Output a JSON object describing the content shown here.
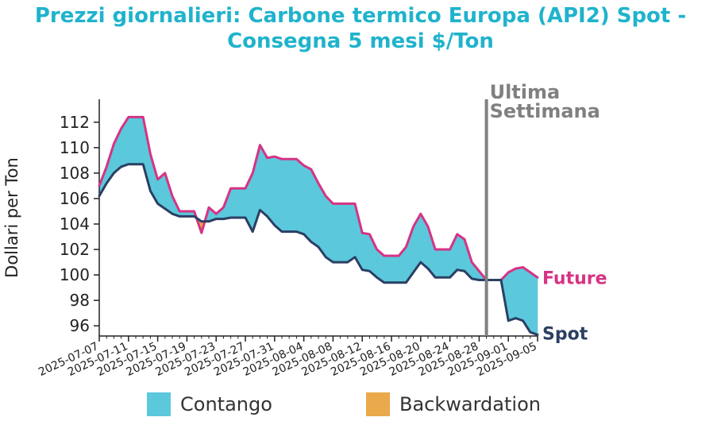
{
  "title_line1": "Prezzi giornalieri: Carbone termico Europa (API2) Spot -",
  "title_line2": "Consegna 5 mesi $/Ton",
  "chart_data": {
    "type": "area",
    "ylabel": "Dollari per Ton",
    "ylim": [
      95.2,
      113.8
    ],
    "yticks": [
      96,
      98,
      100,
      102,
      104,
      106,
      108,
      110,
      112
    ],
    "xlim": [
      "2025-07-07",
      "2025-09-05"
    ],
    "xticks": [
      "2025-07-07",
      "2025-07-11",
      "2025-07-15",
      "2025-07-19",
      "2025-07-23",
      "2025-07-27",
      "2025-07-31",
      "2025-08-04",
      "2025-08-08",
      "2025-08-12",
      "2025-08-16",
      "2025-08-20",
      "2025-08-24",
      "2025-08-28",
      "2025-09-01",
      "2025-09-05"
    ],
    "annotation": {
      "text_line1": "Ultima",
      "text_line2": "Settimana",
      "x": "2025-08-29"
    },
    "series": [
      {
        "name": "Future",
        "color": "#d63384",
        "points": [
          [
            "2025-07-07",
            107.0
          ],
          [
            "2025-07-08",
            108.5
          ],
          [
            "2025-07-09",
            110.3
          ],
          [
            "2025-07-10",
            111.5
          ],
          [
            "2025-07-11",
            112.4
          ],
          [
            "2025-07-12",
            112.4
          ],
          [
            "2025-07-13",
            112.4
          ],
          [
            "2025-07-14",
            109.5
          ],
          [
            "2025-07-15",
            107.5
          ],
          [
            "2025-07-16",
            108.0
          ],
          [
            "2025-07-17",
            106.2
          ],
          [
            "2025-07-18",
            105.0
          ],
          [
            "2025-07-19",
            105.0
          ],
          [
            "2025-07-20",
            105.0
          ],
          [
            "2025-07-21",
            103.3
          ],
          [
            "2025-07-22",
            105.3
          ],
          [
            "2025-07-23",
            104.8
          ],
          [
            "2025-07-24",
            105.3
          ],
          [
            "2025-07-25",
            106.8
          ],
          [
            "2025-07-26",
            106.8
          ],
          [
            "2025-07-27",
            106.8
          ],
          [
            "2025-07-28",
            108.0
          ],
          [
            "2025-07-29",
            110.2
          ],
          [
            "2025-07-30",
            109.2
          ],
          [
            "2025-07-31",
            109.3
          ],
          [
            "2025-08-01",
            109.1
          ],
          [
            "2025-08-02",
            109.1
          ],
          [
            "2025-08-03",
            109.1
          ],
          [
            "2025-08-04",
            108.6
          ],
          [
            "2025-08-05",
            108.3
          ],
          [
            "2025-08-06",
            107.2
          ],
          [
            "2025-08-07",
            106.2
          ],
          [
            "2025-08-08",
            105.6
          ],
          [
            "2025-08-09",
            105.6
          ],
          [
            "2025-08-10",
            105.6
          ],
          [
            "2025-08-11",
            105.6
          ],
          [
            "2025-08-12",
            103.3
          ],
          [
            "2025-08-13",
            103.2
          ],
          [
            "2025-08-14",
            102.0
          ],
          [
            "2025-08-15",
            101.5
          ],
          [
            "2025-08-16",
            101.5
          ],
          [
            "2025-08-17",
            101.5
          ],
          [
            "2025-08-18",
            102.2
          ],
          [
            "2025-08-19",
            103.8
          ],
          [
            "2025-08-20",
            104.8
          ],
          [
            "2025-08-21",
            103.8
          ],
          [
            "2025-08-22",
            102.0
          ],
          [
            "2025-08-23",
            102.0
          ],
          [
            "2025-08-24",
            102.0
          ],
          [
            "2025-08-25",
            103.2
          ],
          [
            "2025-08-26",
            102.8
          ],
          [
            "2025-08-27",
            101.0
          ],
          [
            "2025-08-28",
            100.3
          ],
          [
            "2025-08-29",
            99.6
          ],
          [
            "2025-08-30",
            99.6
          ],
          [
            "2025-08-31",
            99.6
          ],
          [
            "2025-09-01",
            100.2
          ],
          [
            "2025-09-02",
            100.5
          ],
          [
            "2025-09-03",
            100.6
          ],
          [
            "2025-09-04",
            100.2
          ],
          [
            "2025-09-05",
            99.8
          ]
        ]
      },
      {
        "name": "Spot",
        "color": "#2b3f63",
        "points": [
          [
            "2025-07-07",
            106.2
          ],
          [
            "2025-07-08",
            107.2
          ],
          [
            "2025-07-09",
            108.0
          ],
          [
            "2025-07-10",
            108.5
          ],
          [
            "2025-07-11",
            108.7
          ],
          [
            "2025-07-12",
            108.7
          ],
          [
            "2025-07-13",
            108.7
          ],
          [
            "2025-07-14",
            106.6
          ],
          [
            "2025-07-15",
            105.6
          ],
          [
            "2025-07-16",
            105.2
          ],
          [
            "2025-07-17",
            104.8
          ],
          [
            "2025-07-18",
            104.6
          ],
          [
            "2025-07-19",
            104.6
          ],
          [
            "2025-07-20",
            104.6
          ],
          [
            "2025-07-21",
            104.2
          ],
          [
            "2025-07-22",
            104.2
          ],
          [
            "2025-07-23",
            104.4
          ],
          [
            "2025-07-24",
            104.4
          ],
          [
            "2025-07-25",
            104.5
          ],
          [
            "2025-07-26",
            104.5
          ],
          [
            "2025-07-27",
            104.5
          ],
          [
            "2025-07-28",
            103.4
          ],
          [
            "2025-07-29",
            105.1
          ],
          [
            "2025-07-30",
            104.6
          ],
          [
            "2025-07-31",
            103.9
          ],
          [
            "2025-08-01",
            103.4
          ],
          [
            "2025-08-02",
            103.4
          ],
          [
            "2025-08-03",
            103.4
          ],
          [
            "2025-08-04",
            103.2
          ],
          [
            "2025-08-05",
            102.6
          ],
          [
            "2025-08-06",
            102.2
          ],
          [
            "2025-08-07",
            101.4
          ],
          [
            "2025-08-08",
            101.0
          ],
          [
            "2025-08-09",
            101.0
          ],
          [
            "2025-08-10",
            101.0
          ],
          [
            "2025-08-11",
            101.4
          ],
          [
            "2025-08-12",
            100.4
          ],
          [
            "2025-08-13",
            100.3
          ],
          [
            "2025-08-14",
            99.8
          ],
          [
            "2025-08-15",
            99.4
          ],
          [
            "2025-08-16",
            99.4
          ],
          [
            "2025-08-17",
            99.4
          ],
          [
            "2025-08-18",
            99.4
          ],
          [
            "2025-08-19",
            100.2
          ],
          [
            "2025-08-20",
            101.0
          ],
          [
            "2025-08-21",
            100.5
          ],
          [
            "2025-08-22",
            99.8
          ],
          [
            "2025-08-23",
            99.8
          ],
          [
            "2025-08-24",
            99.8
          ],
          [
            "2025-08-25",
            100.4
          ],
          [
            "2025-08-26",
            100.3
          ],
          [
            "2025-08-27",
            99.7
          ],
          [
            "2025-08-28",
            99.6
          ],
          [
            "2025-08-29",
            99.6
          ],
          [
            "2025-08-30",
            99.6
          ],
          [
            "2025-08-31",
            99.6
          ],
          [
            "2025-09-01",
            96.4
          ],
          [
            "2025-09-02",
            96.6
          ],
          [
            "2025-09-03",
            96.4
          ],
          [
            "2025-09-04",
            95.5
          ],
          [
            "2025-09-05",
            95.3
          ]
        ]
      }
    ],
    "fill_colors": {
      "contango": "#5bc8dc",
      "backwardation": "#eaa94a"
    },
    "legend": [
      {
        "label": "Contango",
        "color": "#5bc8dc"
      },
      {
        "label": "Backwardation",
        "color": "#eaa94a"
      }
    ]
  }
}
